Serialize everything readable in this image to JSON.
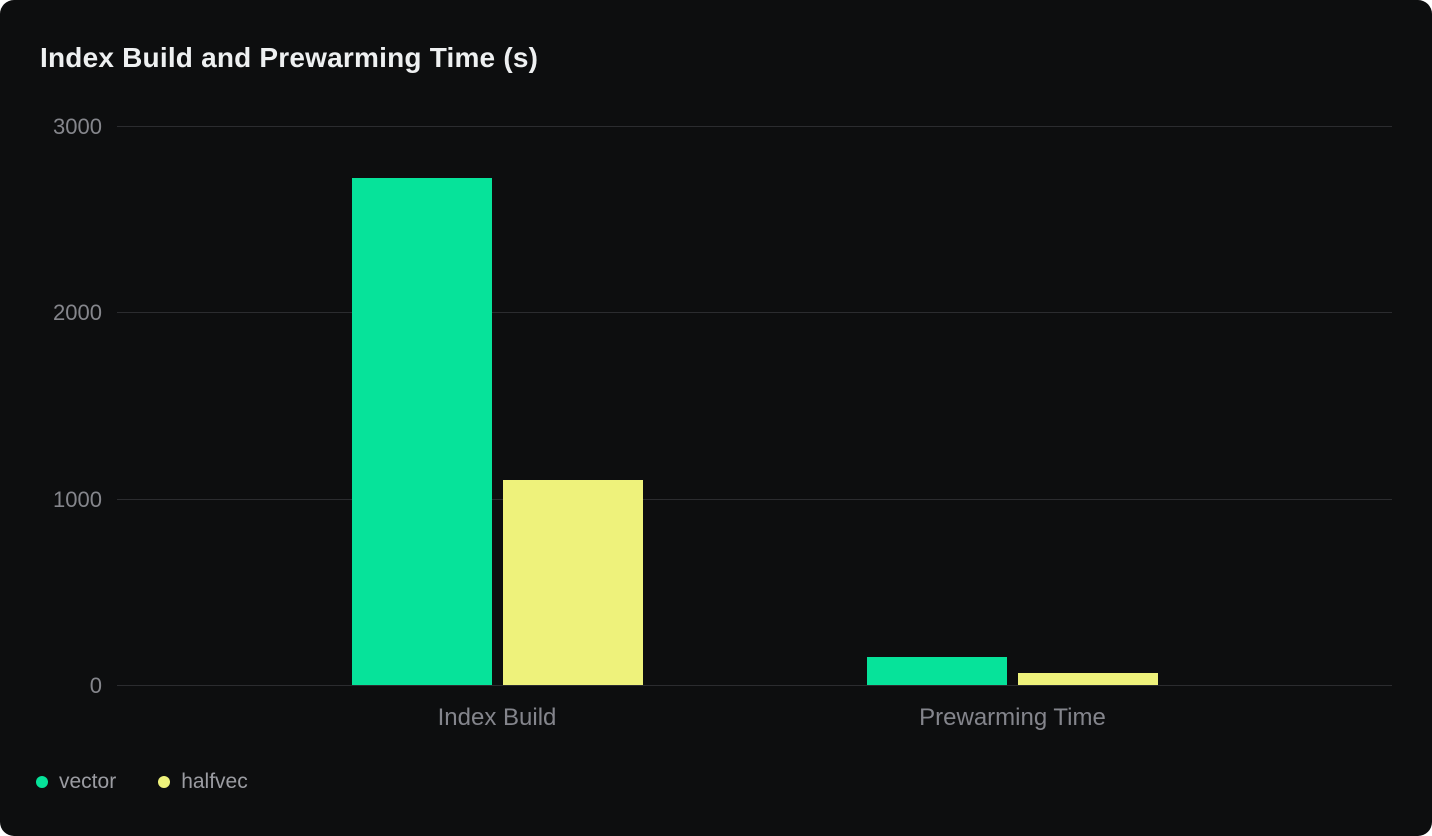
{
  "chart_data": {
    "type": "bar",
    "title": "Index Build and Prewarming Time (s)",
    "categories": [
      "Index Build",
      "Prewarming Time"
    ],
    "series": [
      {
        "name": "vector",
        "color": "#06e39a",
        "values": [
          2720,
          150
        ]
      },
      {
        "name": "halfvec",
        "color": "#eef27b",
        "values": [
          1100,
          65
        ]
      }
    ],
    "xlabel": "",
    "ylabel": "",
    "ylim": [
      0,
      3000
    ],
    "yticks": [
      0,
      1000,
      2000,
      3000
    ],
    "grid": true,
    "legend_position": "bottom-left",
    "unit": "s"
  },
  "theme": {
    "card_background": "#0d0e0f",
    "page_background": "#ffffff",
    "gridline_color": "#2b2c2f",
    "title_color": "#eef0f1",
    "tick_label_color": "#85868c",
    "category_label_color": "#84858c",
    "legend_text_color": "#9b9ca2"
  }
}
